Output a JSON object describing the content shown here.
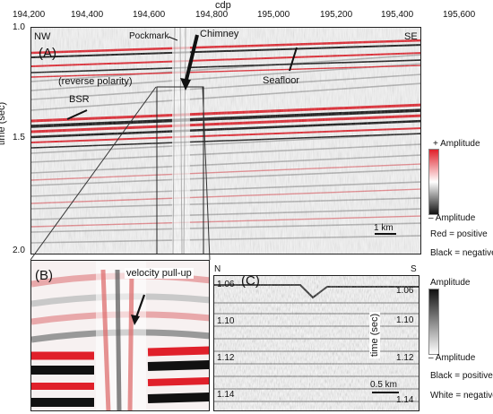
{
  "top_axis": {
    "title": "cdp",
    "ticks": [
      "194,200",
      "194,400",
      "194,600",
      "194,800",
      "195,000",
      "195,200",
      "195,400",
      "195,600"
    ]
  },
  "left_axis": {
    "title": "time (sec)",
    "ticks": [
      "1.0",
      "1.5",
      "2.0"
    ]
  },
  "panel_a": {
    "letter": "(A)",
    "nw": "NW",
    "se": "SE",
    "pockmark": "Pockmark",
    "chimney": "Chimney",
    "reverse_polarity": "(reverse polarity)",
    "bsr": "BSR",
    "seafloor": "Seafloor",
    "scale": "1 km"
  },
  "panel_b": {
    "letter": "(B)",
    "label": "velocity pull-up"
  },
  "panel_c": {
    "letter": "(C)",
    "n": "N",
    "s": "S",
    "left_ticks": [
      "1.06",
      "1.10",
      "1.12",
      "1.14"
    ],
    "right_ticks": [
      "1.06",
      "1.10",
      "1.12",
      "1.14"
    ],
    "axis_title": "time (sec)",
    "scale": "0.5 km"
  },
  "legend_a": {
    "plus": "+ Amplitude",
    "minus": "– Amplitude",
    "red": "Red = positive",
    "black": "Black = negative"
  },
  "legend_c": {
    "plus": "Amplitude",
    "minus": "– Amplitude",
    "black": "Black = positive",
    "white": "White = negative"
  },
  "colors": {
    "red": "#e0202a",
    "black": "#111111",
    "gray": "#888888"
  }
}
